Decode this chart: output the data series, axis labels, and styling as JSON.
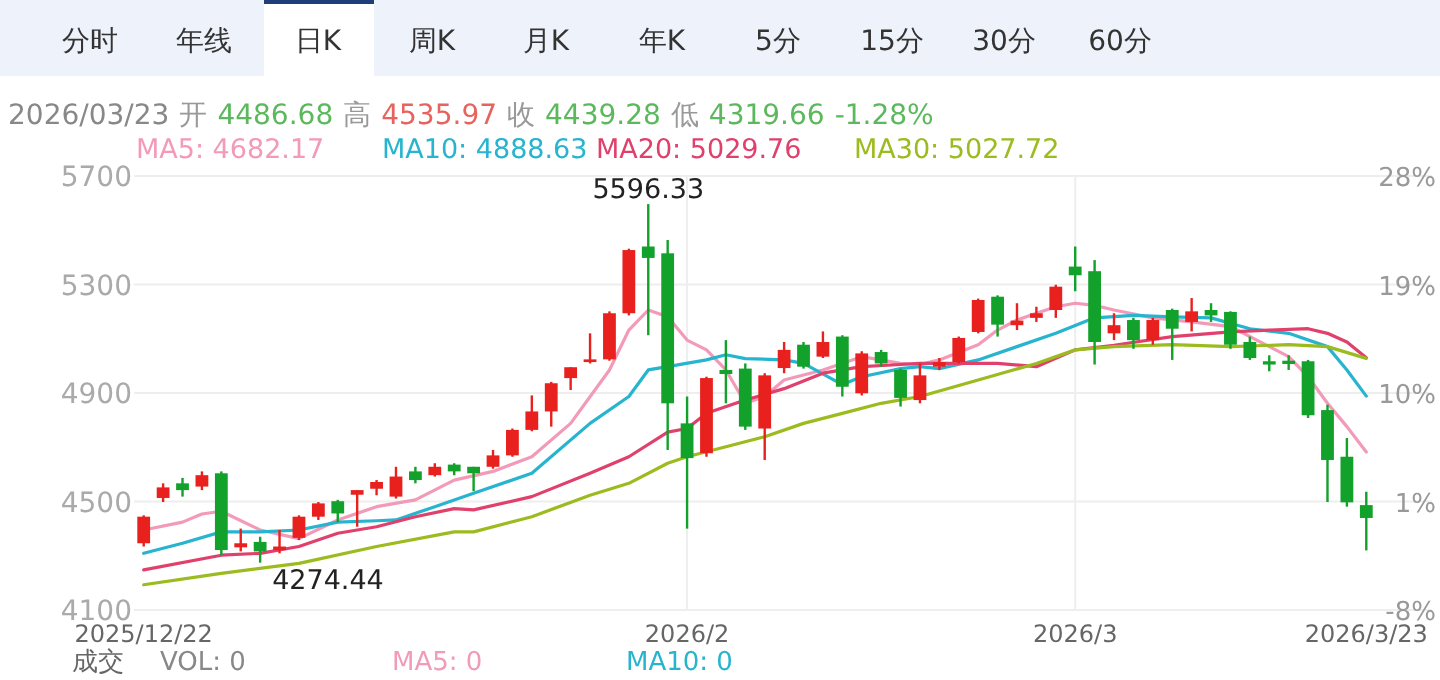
{
  "chart_data": {
    "type": "candlestick",
    "categories": [
      "2025/12/22",
      null,
      null,
      null,
      null,
      null,
      null,
      null,
      null,
      null,
      null,
      null,
      null,
      null,
      null,
      null,
      null,
      null,
      null,
      null,
      null,
      null,
      null,
      null,
      null,
      null,
      null,
      null,
      "2026/2",
      null,
      null,
      null,
      null,
      null,
      null,
      null,
      null,
      null,
      null,
      null,
      null,
      null,
      null,
      null,
      null,
      null,
      null,
      null,
      "2026/3",
      null,
      null,
      null,
      null,
      null,
      null,
      null,
      null,
      null,
      null,
      null,
      null,
      null,
      null,
      "2026/3/23"
    ],
    "ohlc": [
      [
        4346,
        4449,
        4334,
        4444
      ],
      [
        4513,
        4567,
        4498,
        4552
      ],
      [
        4567,
        4587,
        4518,
        4542
      ],
      [
        4555,
        4611,
        4542,
        4597
      ],
      [
        4604,
        4611,
        4302,
        4321
      ],
      [
        4331,
        4400,
        4316,
        4346
      ],
      [
        4351,
        4370,
        4274.44,
        4316
      ],
      [
        4321,
        4395,
        4309,
        4334
      ],
      [
        4366,
        4449,
        4358,
        4444
      ],
      [
        4444,
        4498,
        4432,
        4493
      ],
      [
        4501,
        4506,
        4424,
        4456
      ],
      [
        4525,
        4542,
        4407,
        4542
      ],
      [
        4547,
        4579,
        4523,
        4572
      ],
      [
        4518,
        4628,
        4511,
        4592
      ],
      [
        4611,
        4628,
        4567,
        4579
      ],
      [
        4597,
        4641,
        4592,
        4628
      ],
      [
        4636,
        4641,
        4597,
        4611
      ],
      [
        4628,
        4628,
        4538,
        4604
      ],
      [
        4628,
        4690,
        4621,
        4670
      ],
      [
        4670,
        4769,
        4665,
        4764
      ],
      [
        4764,
        4891,
        4759,
        4832
      ],
      [
        4832,
        4941,
        4776,
        4936
      ],
      [
        4955,
        4995,
        4911,
        4995
      ],
      [
        5014,
        5120,
        5009,
        5024
      ],
      [
        5024,
        5201,
        5019,
        5194
      ],
      [
        5194,
        5432,
        5186,
        5427
      ],
      [
        5440,
        5596.33,
        5113,
        5398
      ],
      [
        5415,
        5464,
        4690,
        4862
      ],
      [
        4788,
        4887,
        4400,
        4660
      ],
      [
        4678,
        4960,
        4665,
        4955
      ],
      [
        4985,
        5095,
        4862,
        4970
      ],
      [
        4990,
        5009,
        4764,
        4776
      ],
      [
        4769,
        4973,
        4653,
        4965
      ],
      [
        4992,
        5088,
        4973,
        5059
      ],
      [
        5078,
        5088,
        4990,
        4997
      ],
      [
        5034,
        5127,
        5029,
        5088
      ],
      [
        5108,
        5113,
        4887,
        4923
      ],
      [
        4899,
        5054,
        4891,
        5046
      ],
      [
        5051,
        5059,
        4997,
        5009
      ],
      [
        4985,
        4990,
        4850,
        4882
      ],
      [
        4874,
        5009,
        4862,
        4965
      ],
      [
        4997,
        5029,
        4985,
        5014
      ],
      [
        5014,
        5108,
        5009,
        5103
      ],
      [
        5125,
        5248,
        5120,
        5243
      ],
      [
        5255,
        5260,
        5108,
        5152
      ],
      [
        5150,
        5231,
        5132,
        5167
      ],
      [
        5177,
        5218,
        5162,
        5194
      ],
      [
        5206,
        5299,
        5177,
        5292
      ],
      [
        5366,
        5440,
        5275,
        5334
      ],
      [
        5349,
        5390,
        5005,
        5088
      ],
      [
        5120,
        5194,
        5095,
        5150
      ],
      [
        5169,
        5177,
        5063,
        5095
      ],
      [
        5095,
        5177,
        5078,
        5169
      ],
      [
        5206,
        5211,
        5022,
        5137
      ],
      [
        5162,
        5250,
        5127,
        5201
      ],
      [
        5206,
        5231,
        5162,
        5186
      ],
      [
        5199,
        5201,
        5063,
        5078
      ],
      [
        5088,
        5108,
        5022,
        5029
      ],
      [
        5017,
        5039,
        4980,
        5005
      ],
      [
        5019,
        5039,
        4985,
        5007
      ],
      [
        5017,
        5022,
        4808,
        4818
      ],
      [
        4837,
        4857,
        4498,
        4653
      ],
      [
        4665,
        4734,
        4481,
        4496.84
      ],
      [
        4486.68,
        4535.97,
        4319.66,
        4439.28
      ]
    ],
    "series": [
      {
        "name": "MA5: 4682.17",
        "type": "line",
        "color": "#f29ab8",
        "values": [
          4395,
          null,
          4424,
          4454,
          4464,
          null,
          4395,
          null,
          4363,
          null,
          4432,
          null,
          4481,
          null,
          4506,
          null,
          4579,
          null,
          4611,
          null,
          4665,
          null,
          4788,
          null,
          4985,
          5132,
          5206,
          5181,
          5095,
          5059,
          4985,
          4862,
          4887,
          4948,
          null,
          4985,
          null,
          5034,
          null,
          5009,
          5005,
          5022,
          null,
          5078,
          5132,
          5169,
          5194,
          5218,
          5231,
          5223,
          5206,
          null,
          5177,
          null,
          5162,
          null,
          5145,
          null,
          5071,
          5034,
          4960,
          4862,
          4776,
          4682.17
        ]
      },
      {
        "name": "MA10: 4888.63",
        "type": "line",
        "color": "#27b4cf",
        "values": [
          4309,
          null,
          4346,
          null,
          4388,
          null,
          4388,
          null,
          4395,
          null,
          4424,
          null,
          4429,
          4432,
          null,
          4481,
          null,
          4530,
          null,
          null,
          4604,
          null,
          null,
          4788,
          null,
          4887,
          4985,
          4997,
          null,
          5022,
          5041,
          5027,
          null,
          5022,
          5009,
          null,
          4931,
          4960,
          null,
          4990,
          4997,
          4990,
          null,
          5022,
          null,
          5071,
          null,
          5120,
          null,
          5177,
          null,
          5186,
          null,
          5181,
          null,
          5177,
          null,
          5137,
          null,
          5120,
          null,
          5071,
          4985,
          4888.63
        ]
      },
      {
        "name": "MA20: 5029.76",
        "type": "line",
        "color": "#e0406c",
        "values": [
          4248,
          null,
          null,
          null,
          4302,
          null,
          4309,
          null,
          4334,
          null,
          4383,
          null,
          4407,
          null,
          4444,
          null,
          4474,
          4469,
          null,
          null,
          4518,
          null,
          null,
          4604,
          null,
          4665,
          null,
          4756,
          4769,
          4825,
          null,
          4874,
          null,
          4916,
          null,
          4973,
          null,
          4997,
          null,
          5005,
          5009,
          null,
          null,
          null,
          5009,
          null,
          4997,
          null,
          5059,
          null,
          5076,
          null,
          null,
          5108,
          null,
          null,
          5125,
          null,
          5132,
          null,
          5137,
          5120,
          5088,
          5029.76
        ]
      },
      {
        "name": "MA30: 5027.72",
        "type": "line",
        "color": "#9bbb1e",
        "values": [
          4193,
          null,
          null,
          null,
          4235,
          null,
          null,
          null,
          4272,
          null,
          null,
          null,
          4334,
          null,
          null,
          null,
          4388,
          4388,
          null,
          null,
          4444,
          null,
          null,
          4523,
          null,
          4567,
          null,
          4641,
          4665,
          null,
          4702,
          null,
          4739,
          null,
          4788,
          null,
          4825,
          null,
          4862,
          null,
          4887,
          null,
          null,
          4948,
          null,
          null,
          5009,
          null,
          5059,
          null,
          5071,
          null,
          null,
          5078,
          null,
          null,
          5071,
          null,
          null,
          5078,
          null,
          5071,
          null,
          5027.72
        ]
      }
    ],
    "ylim": [
      4100,
      5700
    ],
    "yticks": [
      4100,
      4500,
      4900,
      5300,
      5700
    ],
    "y2lim": [
      -8,
      28
    ],
    "y2ticks": [
      {
        "value": -8,
        "label": "-8%"
      },
      {
        "value": 1,
        "label": "1%"
      },
      {
        "value": 10,
        "label": "10%"
      },
      {
        "value": 19,
        "label": "19%"
      },
      {
        "value": 28,
        "label": "28%"
      }
    ],
    "grid": true,
    "legend": "top",
    "annotations": [
      "分时",
      "年线",
      "日K",
      "周K",
      "月K",
      "年K",
      "5分",
      "15分",
      "30分",
      "60分",
      "2026/03/23",
      "开",
      "4486.68",
      "高",
      "4535.97",
      "收",
      "4439.28",
      "低",
      "4319.66",
      "-1.28%",
      "成交",
      "VOL: 0",
      "MA5: 0",
      "MA10: 0",
      "5596.33",
      "4274.44"
    ]
  }
}
